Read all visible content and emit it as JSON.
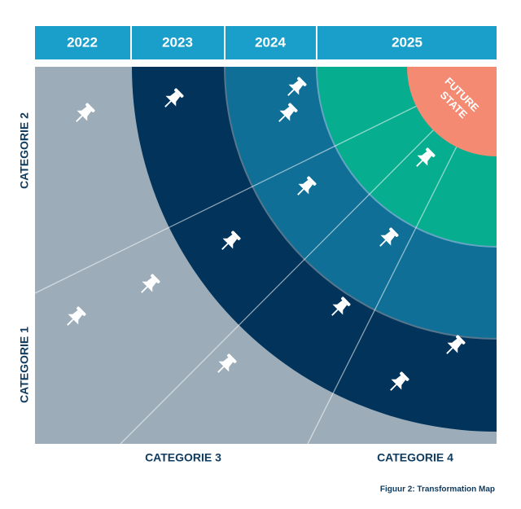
{
  "header": {
    "years": [
      "2022",
      "2023",
      "2024",
      "2025"
    ]
  },
  "categories": {
    "left_top": "CATEGORIE 2",
    "left_bottom": "CATEGORIE 1",
    "bottom_left": "CATEGORIE 3",
    "bottom_right": "CATEGORIE 4"
  },
  "future_state": [
    "FUTURE",
    "STATE"
  ],
  "caption": "Figuur 2: Transformation Map"
}
